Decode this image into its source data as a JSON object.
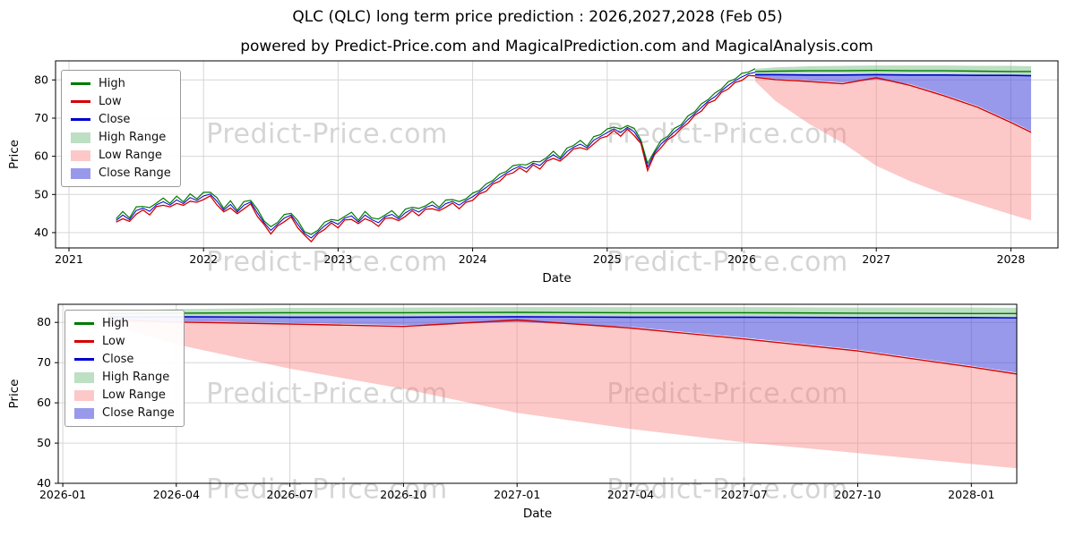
{
  "title": "QLC (QLC) long term price prediction : 2026,2027,2028 (Feb 05)",
  "watermark": "Predict-Price.com",
  "colors": {
    "high": "#007a00",
    "low": "#d40000",
    "close": "#0000cd",
    "high_range": "rgba(134,197,145,0.55)",
    "low_range": "rgba(248,125,125,0.42)",
    "close_range": "rgba(70,70,220,0.55)",
    "grid": "#d6d6d6",
    "axis": "#000000"
  },
  "legend": [
    {
      "label": "High",
      "type": "line",
      "color": "high"
    },
    {
      "label": "Low",
      "type": "line",
      "color": "low"
    },
    {
      "label": "Close",
      "type": "line",
      "color": "close"
    },
    {
      "label": "High Range",
      "type": "fill",
      "color": "high_range"
    },
    {
      "label": "Low Range",
      "type": "fill",
      "color": "low_range"
    },
    {
      "label": "Close Range",
      "type": "fill",
      "color": "close_range"
    }
  ],
  "chart_data": [
    {
      "type": "line",
      "title": "powered by Predict-Price.com and MagicalPrediction.com and MagicalAnalysis.com",
      "xlabel": "Date",
      "ylabel": "Price",
      "xlim": [
        2020.9,
        2028.35
      ],
      "ylim": [
        36,
        85
      ],
      "xticks": {
        "values": [
          2021,
          2022,
          2023,
          2024,
          2025,
          2026,
          2027,
          2028
        ],
        "labels": [
          "2021",
          "2022",
          "2023",
          "2024",
          "2025",
          "2026",
          "2027",
          "2028"
        ]
      },
      "yticks": [
        40,
        50,
        60,
        70,
        80
      ],
      "history": {
        "x_start": 2021.35,
        "x_step": 0.05,
        "band": 0.7,
        "close": [
          43.2,
          44.6,
          43.4,
          45.8,
          46.4,
          45.6,
          47.3,
          48.1,
          47.2,
          48.6,
          47.6,
          49.2,
          48.4,
          49.6,
          50.1,
          48.2,
          45.9,
          47.4,
          45.4,
          47.2,
          48.0,
          45.2,
          42.6,
          40.6,
          42.2,
          43.8,
          44.6,
          42.2,
          39.8,
          38.6,
          40.2,
          41.8,
          43.0,
          42.2,
          43.8,
          44.4,
          42.8,
          44.6,
          43.4,
          42.6,
          44.2,
          44.8,
          43.6,
          45.2,
          46.2,
          45.4,
          46.6,
          47.2,
          46.2,
          47.6,
          48.2,
          47.2,
          48.4,
          49.4,
          50.6,
          51.8,
          53.2,
          54.4,
          55.6,
          56.6,
          57.4,
          56.8,
          58.2,
          57.6,
          59.2,
          60.4,
          59.2,
          61.2,
          62.4,
          63.2,
          62.2,
          64.2,
          65.2,
          66.2,
          67.2,
          66.2,
          67.6,
          66.4,
          63.8,
          57.2,
          60.8,
          63.2,
          64.8,
          66.4,
          67.8,
          69.6,
          71.2,
          72.8,
          74.4,
          75.6,
          77.2,
          78.6,
          79.8,
          80.8,
          81.6,
          82.0
        ]
      },
      "prediction": {
        "x": [
          2026.1,
          2026.25,
          2026.5,
          2026.75,
          2027.0,
          2027.25,
          2027.5,
          2027.75,
          2028.0,
          2028.15
        ],
        "high_line": [
          82.2,
          82.3,
          82.4,
          82.4,
          82.5,
          82.4,
          82.4,
          82.3,
          82.2,
          82.2
        ],
        "high_top": [
          82.9,
          83.3,
          83.6,
          83.7,
          83.8,
          83.8,
          83.8,
          83.7,
          83.7,
          83.6
        ],
        "high_bottom": [
          81.6,
          81.6,
          81.5,
          81.5,
          81.6,
          81.5,
          81.5,
          81.4,
          81.4,
          81.3
        ],
        "close_line": [
          81.4,
          81.4,
          81.3,
          81.3,
          81.4,
          81.3,
          81.3,
          81.2,
          81.2,
          81.1
        ],
        "close_bottom": [
          80.9,
          80.3,
          79.9,
          79.3,
          80.1,
          78.9,
          76.2,
          73.2,
          69.2,
          66.6
        ],
        "low_line": [
          80.7,
          80.1,
          79.6,
          79.0,
          80.6,
          78.6,
          75.9,
          72.9,
          68.9,
          66.3
        ],
        "low_bottom": [
          79.6,
          74.5,
          68.5,
          63.5,
          57.5,
          53.5,
          50.2,
          47.5,
          44.8,
          43.2
        ]
      }
    },
    {
      "type": "line",
      "title": "",
      "xlabel": "Date",
      "ylabel": "Price",
      "xlim": [
        2025.99,
        2028.1
      ],
      "ylim": [
        40,
        84.5
      ],
      "xticks": {
        "values": [
          2026.0,
          2026.25,
          2026.5,
          2026.75,
          2027.0,
          2027.25,
          2027.5,
          2027.75,
          2028.0
        ],
        "labels": [
          "2026-01",
          "2026-04",
          "2026-07",
          "2026-10",
          "2027-01",
          "2027-04",
          "2027-07",
          "2027-10",
          "2028-01"
        ]
      },
      "yticks": [
        40,
        50,
        60,
        70,
        80
      ]
    }
  ]
}
